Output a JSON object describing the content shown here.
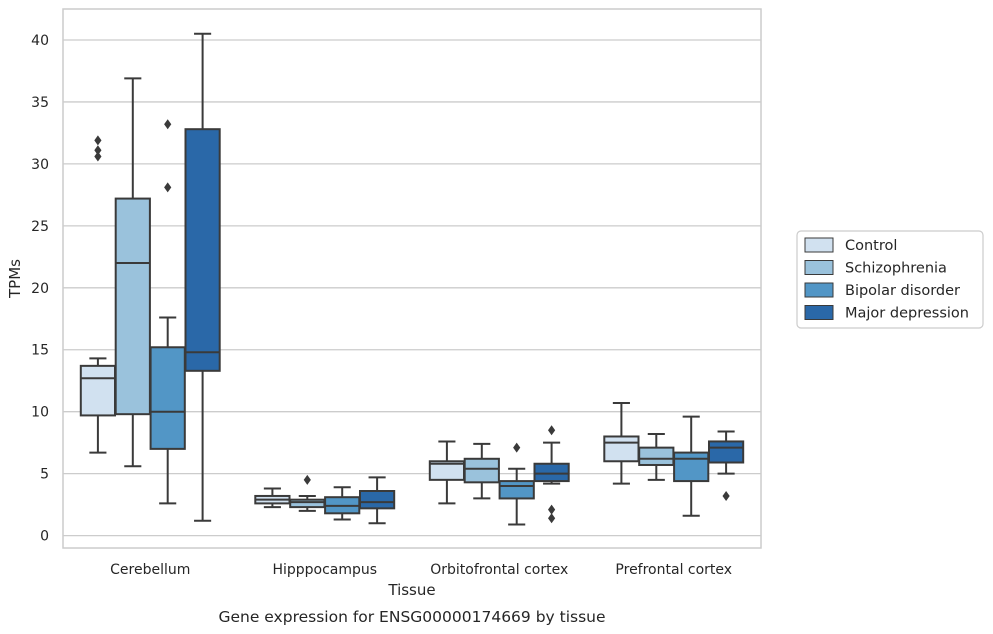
{
  "caption": "Gene expression for ENSG00000174669 by tissue",
  "colors": {
    "grid": "#cccccc",
    "frame": "#cccccc",
    "line": "#3a3a3a",
    "legend_border": "#cccccc"
  },
  "chart_data": {
    "type": "box",
    "xlabel": "Tissue",
    "ylabel": "TPMs",
    "ylim": [
      -1,
      42.5
    ],
    "yticks": [
      0,
      5,
      10,
      15,
      20,
      25,
      30,
      35,
      40
    ],
    "grid": "horizontal",
    "legend_position": "right",
    "categories": [
      "Cerebellum",
      "Hipppocampus",
      "Orbitofrontal cortex",
      "Prefrontal cortex"
    ],
    "series": [
      {
        "name": "Control",
        "color": "#d1e1f0",
        "boxes": [
          {
            "whislo": 6.7,
            "q1": 9.7,
            "med": 12.7,
            "q3": 13.7,
            "whishi": 14.3,
            "fliers": [
              30.6,
              31.1,
              31.9
            ]
          },
          {
            "whislo": 2.3,
            "q1": 2.6,
            "med": 2.9,
            "q3": 3.2,
            "whishi": 3.8,
            "fliers": []
          },
          {
            "whislo": 2.6,
            "q1": 4.5,
            "med": 5.8,
            "q3": 6.0,
            "whishi": 7.6,
            "fliers": []
          },
          {
            "whislo": 4.2,
            "q1": 6.0,
            "med": 7.5,
            "q3": 8.0,
            "whishi": 10.7,
            "fliers": []
          }
        ]
      },
      {
        "name": "Schizophrenia",
        "color": "#9ac2dc",
        "boxes": [
          {
            "whislo": 5.6,
            "q1": 9.8,
            "med": 22.0,
            "q3": 27.2,
            "whishi": 36.9,
            "fliers": []
          },
          {
            "whislo": 2.0,
            "q1": 2.3,
            "med": 2.7,
            "q3": 2.9,
            "whishi": 3.2,
            "fliers": [
              4.5
            ]
          },
          {
            "whislo": 3.0,
            "q1": 4.3,
            "med": 5.4,
            "q3": 6.2,
            "whishi": 7.4,
            "fliers": []
          },
          {
            "whislo": 4.5,
            "q1": 5.7,
            "med": 6.2,
            "q3": 7.1,
            "whishi": 8.2,
            "fliers": []
          }
        ]
      },
      {
        "name": "Bipolar disorder",
        "color": "#5296c6",
        "boxes": [
          {
            "whislo": 2.6,
            "q1": 7.0,
            "med": 10.0,
            "q3": 15.2,
            "whishi": 17.6,
            "fliers": [
              28.1,
              33.2
            ]
          },
          {
            "whislo": 1.3,
            "q1": 1.8,
            "med": 2.4,
            "q3": 3.1,
            "whishi": 3.9,
            "fliers": []
          },
          {
            "whislo": 0.9,
            "q1": 3.0,
            "med": 4.0,
            "q3": 4.4,
            "whishi": 5.4,
            "fliers": [
              7.1
            ]
          },
          {
            "whislo": 1.6,
            "q1": 4.4,
            "med": 6.2,
            "q3": 6.7,
            "whishi": 9.6,
            "fliers": []
          }
        ]
      },
      {
        "name": "Major depression",
        "color": "#2a68a8",
        "boxes": [
          {
            "whislo": 1.2,
            "q1": 13.3,
            "med": 14.8,
            "q3": 32.8,
            "whishi": 40.5,
            "fliers": []
          },
          {
            "whislo": 1.0,
            "q1": 2.2,
            "med": 2.7,
            "q3": 3.6,
            "whishi": 4.7,
            "fliers": []
          },
          {
            "whislo": 4.2,
            "q1": 4.4,
            "med": 5.0,
            "q3": 5.8,
            "whishi": 7.5,
            "fliers": [
              1.4,
              2.1,
              8.5
            ]
          },
          {
            "whislo": 5.0,
            "q1": 5.9,
            "med": 7.1,
            "q3": 7.6,
            "whishi": 8.4,
            "fliers": [
              3.2
            ]
          }
        ]
      }
    ]
  }
}
